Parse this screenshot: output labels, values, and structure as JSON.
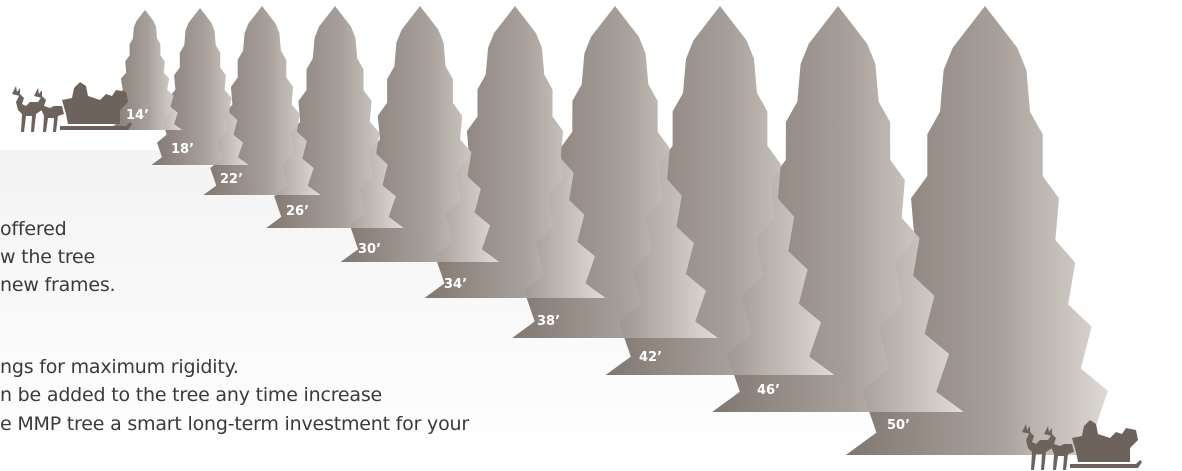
{
  "tree_sizes": [
    "14’",
    "18’",
    "22’",
    "26’",
    "30’",
    "34’",
    "38’",
    "42’",
    "46’",
    "50’"
  ],
  "body_text": {
    "line1": "offered",
    "line2": "w the tree",
    "line3": "new frames.",
    "line4": "ngs for maximum rigidity.",
    "line5": "n be added to the tree any time increase",
    "line6": "e MMP tree a smart long-term investment for your"
  },
  "icons": {
    "sleigh_left": "santa-sleigh-reindeer-icon",
    "sleigh_right": "santa-sleigh-reindeer-icon"
  },
  "colors": {
    "tree_dark": "#7b706a",
    "tree_light": "#d7d2cd",
    "sleigh": "#6e625c",
    "text": "#3a3a3a",
    "label": "#ffffff"
  }
}
